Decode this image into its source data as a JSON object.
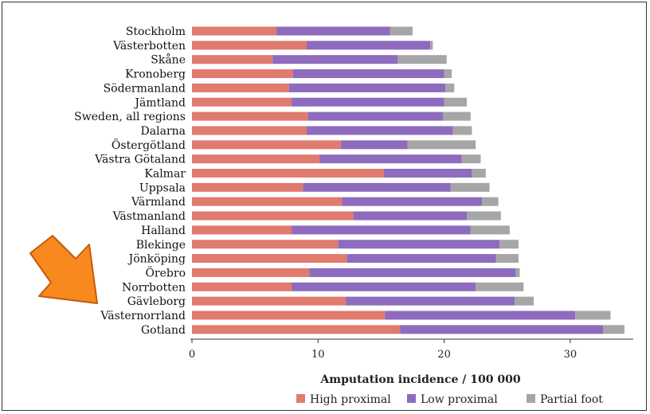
{
  "chart_data": {
    "type": "bar",
    "orientation": "horizontal",
    "stacked": true,
    "categories": [
      "Stockholm",
      "Västerbotten",
      "Skåne",
      "Kronoberg",
      "Södermanland",
      "Jämtland",
      "Sweden, all regions",
      "Dalarna",
      "Östergötland",
      "Västra Götaland",
      "Kalmar",
      "Uppsala",
      "Värmland",
      "Västmanland",
      "Halland",
      "Blekinge",
      "Jönköping",
      "Örebro",
      "Norrbotten",
      "Gävleborg",
      "Västernorrland",
      "Gotland"
    ],
    "series": [
      {
        "name": "High proximal",
        "color": "#e07b6e",
        "values": [
          6.7,
          9.1,
          6.4,
          8.0,
          7.7,
          7.9,
          9.2,
          9.1,
          11.8,
          10.1,
          15.2,
          8.8,
          11.9,
          12.8,
          7.9,
          11.6,
          12.3,
          9.3,
          7.9,
          12.2,
          15.3,
          16.5
        ]
      },
      {
        "name": "Low proximal",
        "color": "#8e6bbf",
        "values": [
          9.0,
          9.8,
          9.9,
          12.0,
          12.4,
          12.1,
          10.7,
          11.6,
          5.3,
          11.3,
          7.0,
          11.7,
          11.1,
          9.0,
          14.2,
          12.8,
          11.8,
          16.4,
          14.6,
          13.4,
          15.1,
          16.1
        ]
      },
      {
        "name": "Partial foot",
        "color": "#a6a6a6",
        "values": [
          1.8,
          0.2,
          3.9,
          0.6,
          0.7,
          1.8,
          2.2,
          1.5,
          5.4,
          1.5,
          1.1,
          3.1,
          1.3,
          2.7,
          3.1,
          1.5,
          1.8,
          0.3,
          3.8,
          1.5,
          2.8,
          1.7
        ]
      }
    ],
    "xlabel": "Amputation incidence / 100 000",
    "xlim": [
      0,
      35
    ],
    "xticks": [
      0,
      10,
      20,
      30
    ],
    "legend_position": "bottom-right",
    "annotation": "orange arrow pointing at Norrbotten and Gävleborg"
  }
}
